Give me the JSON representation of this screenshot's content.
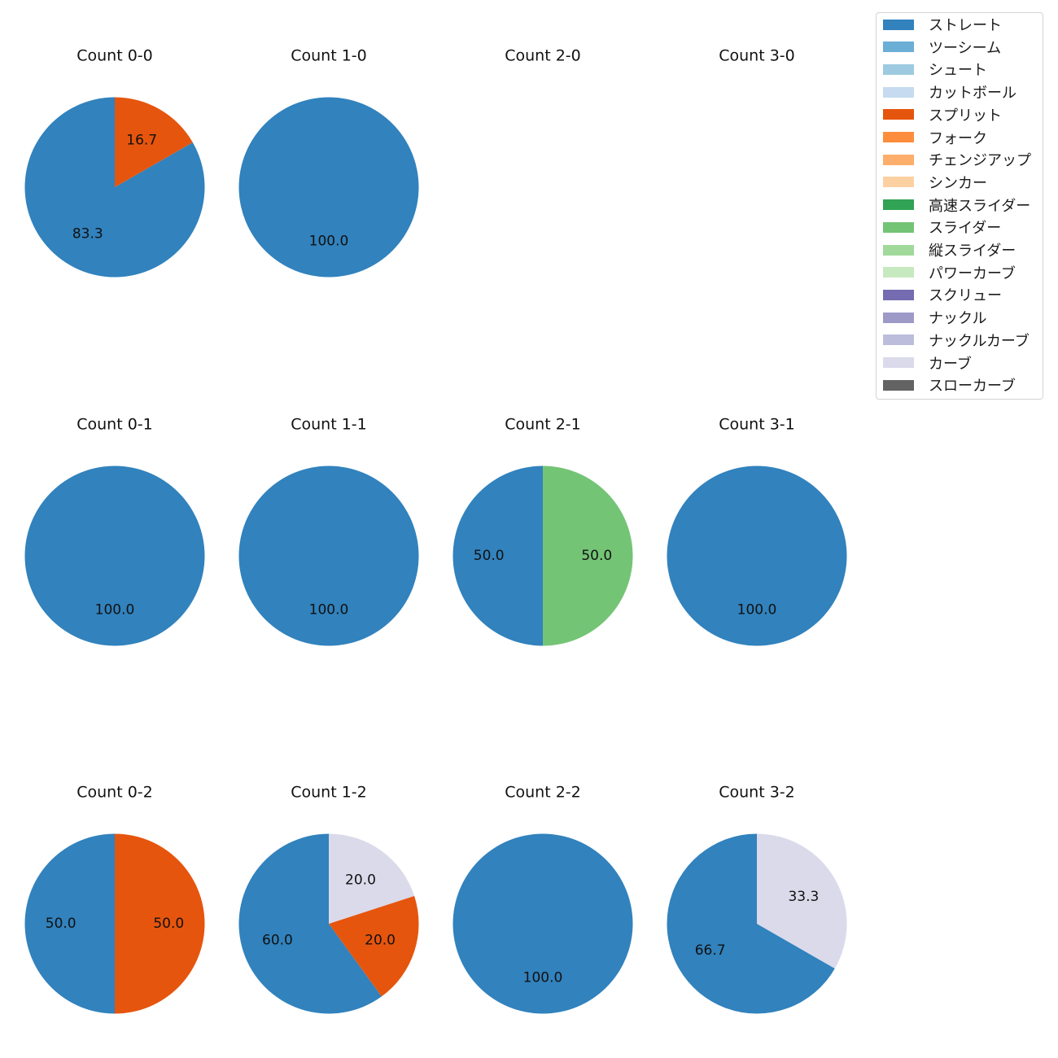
{
  "chart_data": {
    "type": "pie",
    "legend_position": "top-right",
    "legend": [
      {
        "label": "ストレート",
        "color": "#3182bd"
      },
      {
        "label": "ツーシーム",
        "color": "#6baed6"
      },
      {
        "label": "シュート",
        "color": "#9ecae1"
      },
      {
        "label": "カットボール",
        "color": "#c6dbef"
      },
      {
        "label": "スプリット",
        "color": "#e6550d"
      },
      {
        "label": "フォーク",
        "color": "#fd8d3c"
      },
      {
        "label": "チェンジアップ",
        "color": "#fdae6b"
      },
      {
        "label": "シンカー",
        "color": "#fdd0a2"
      },
      {
        "label": "高速スライダー",
        "color": "#31a354"
      },
      {
        "label": "スライダー",
        "color": "#74c476"
      },
      {
        "label": "縦スライダー",
        "color": "#a1d99b"
      },
      {
        "label": "パワーカーブ",
        "color": "#c7e9c0"
      },
      {
        "label": "スクリュー",
        "color": "#756bb1"
      },
      {
        "label": "ナックル",
        "color": "#9e9ac8"
      },
      {
        "label": "ナックルカーブ",
        "color": "#bcbddc"
      },
      {
        "label": "カーブ",
        "color": "#dadaeb"
      },
      {
        "label": "スローカーブ",
        "color": "#636363"
      }
    ],
    "panels": [
      {
        "title": "Count 0-0",
        "slices": [
          {
            "pitch": "ストレート",
            "value": 83.3
          },
          {
            "pitch": "スプリット",
            "value": 16.7
          }
        ]
      },
      {
        "title": "Count 1-0",
        "slices": [
          {
            "pitch": "ストレート",
            "value": 100.0
          }
        ]
      },
      {
        "title": "Count 2-0",
        "slices": []
      },
      {
        "title": "Count 3-0",
        "slices": []
      },
      {
        "title": "Count 0-1",
        "slices": [
          {
            "pitch": "ストレート",
            "value": 100.0
          }
        ]
      },
      {
        "title": "Count 1-1",
        "slices": [
          {
            "pitch": "ストレート",
            "value": 100.0
          }
        ]
      },
      {
        "title": "Count 2-1",
        "slices": [
          {
            "pitch": "ストレート",
            "value": 50.0
          },
          {
            "pitch": "スライダー",
            "value": 50.0
          }
        ]
      },
      {
        "title": "Count 3-1",
        "slices": [
          {
            "pitch": "ストレート",
            "value": 100.0
          }
        ]
      },
      {
        "title": "Count 0-2",
        "slices": [
          {
            "pitch": "ストレート",
            "value": 50.0
          },
          {
            "pitch": "スプリット",
            "value": 50.0
          }
        ]
      },
      {
        "title": "Count 1-2",
        "slices": [
          {
            "pitch": "ストレート",
            "value": 60.0
          },
          {
            "pitch": "スプリット",
            "value": 20.0
          },
          {
            "pitch": "カーブ",
            "value": 20.0
          }
        ]
      },
      {
        "title": "Count 2-2",
        "slices": [
          {
            "pitch": "ストレート",
            "value": 100.0
          }
        ]
      },
      {
        "title": "Count 3-2",
        "slices": [
          {
            "pitch": "ストレート",
            "value": 66.7
          },
          {
            "pitch": "カーブ",
            "value": 33.3
          }
        ]
      }
    ]
  }
}
